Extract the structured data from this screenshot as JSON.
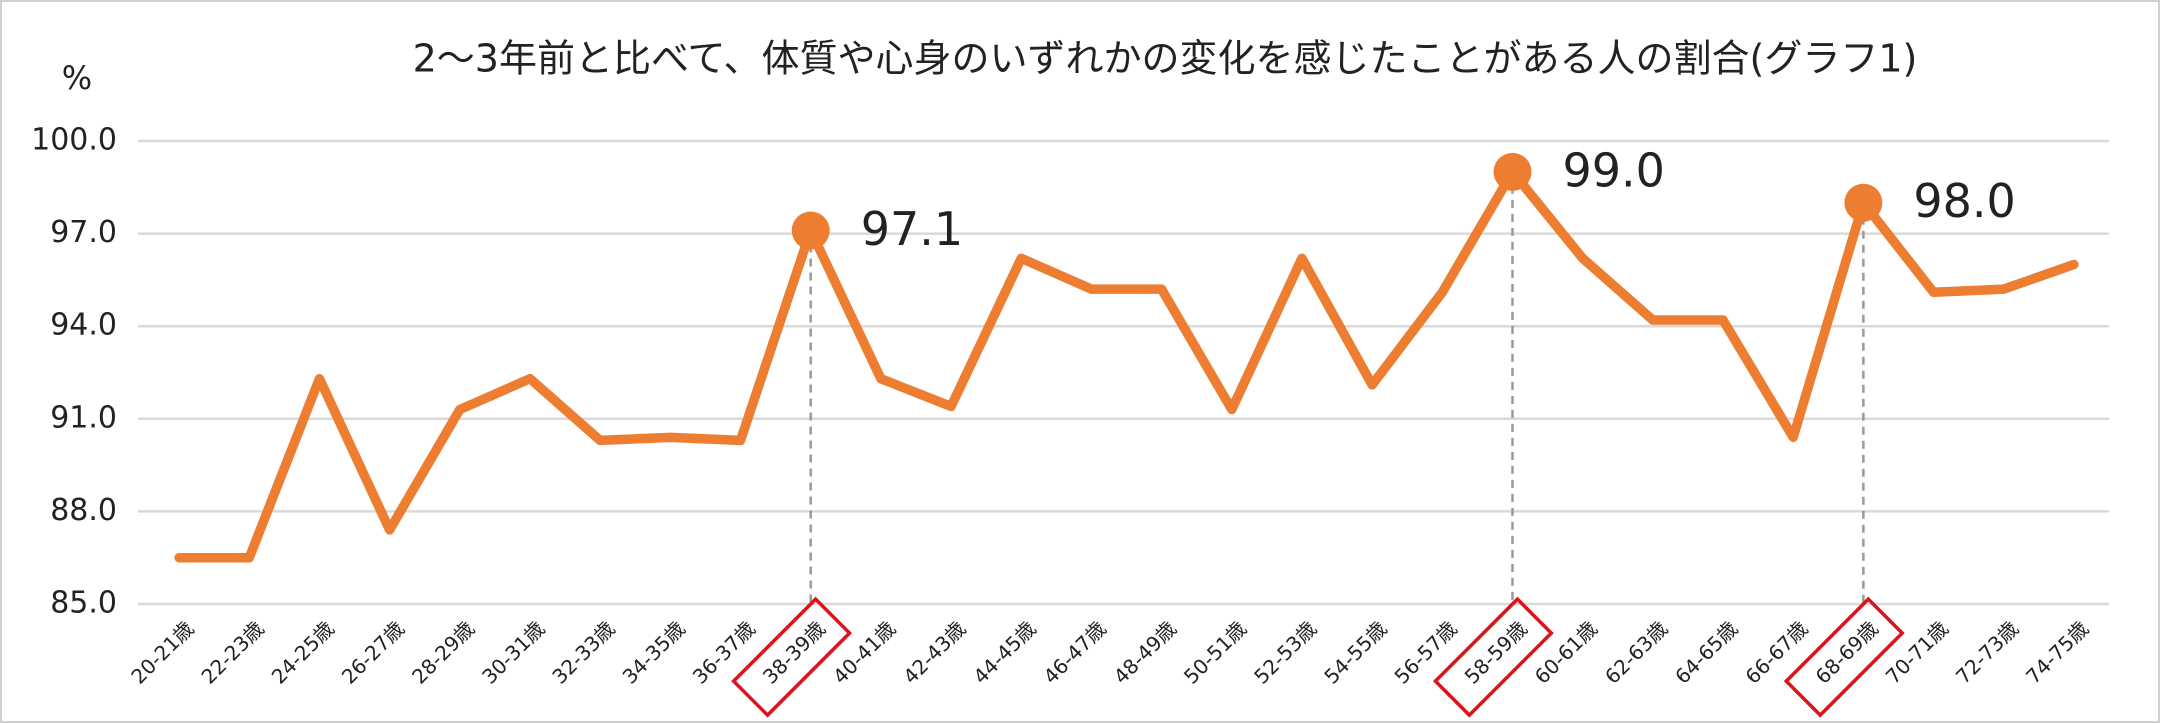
{
  "chart_data": {
    "type": "line",
    "title": "2～3年前と比べて、体質や心身のいずれかの変化を感じたことがある人の割合(グラフ1)",
    "y_label": "%",
    "categories": [
      "20-21歳",
      "22-23歳",
      "24-25歳",
      "26-27歳",
      "28-29歳",
      "30-31歳",
      "32-33歳",
      "34-35歳",
      "36-37歳",
      "38-39歳",
      "40-41歳",
      "42-43歳",
      "44-45歳",
      "46-47歳",
      "48-49歳",
      "50-51歳",
      "52-53歳",
      "54-55歳",
      "56-57歳",
      "58-59歳",
      "60-61歳",
      "62-63歳",
      "64-65歳",
      "66-67歳",
      "68-69歳",
      "70-71歳",
      "72-73歳",
      "74-75歳"
    ],
    "values": [
      86.5,
      86.5,
      92.3,
      87.4,
      91.3,
      92.3,
      90.3,
      90.4,
      90.3,
      97.1,
      92.3,
      91.4,
      96.2,
      95.2,
      95.2,
      91.3,
      96.2,
      92.1,
      95.1,
      99.0,
      96.2,
      94.2,
      94.2,
      90.4,
      98.0,
      95.1,
      95.2,
      96.0
    ],
    "value_labels": [
      null,
      null,
      null,
      null,
      null,
      null,
      null,
      null,
      null,
      "97.1",
      null,
      null,
      null,
      null,
      null,
      null,
      null,
      null,
      null,
      "99.0",
      null,
      null,
      null,
      null,
      "98.0",
      null,
      null,
      null
    ],
    "color": "#ed7d31",
    "highlight_color": "#d9141b",
    "ylim": [
      85,
      100
    ],
    "yticks": [
      {
        "value": 85,
        "label": "85.0"
      },
      {
        "value": 88,
        "label": "88.0"
      },
      {
        "value": 91,
        "label": "91.0"
      },
      {
        "value": 94,
        "label": "94.0"
      },
      {
        "value": 97,
        "label": "97.0"
      },
      {
        "value": 100,
        "label": "100.0"
      }
    ],
    "grid": true
  }
}
